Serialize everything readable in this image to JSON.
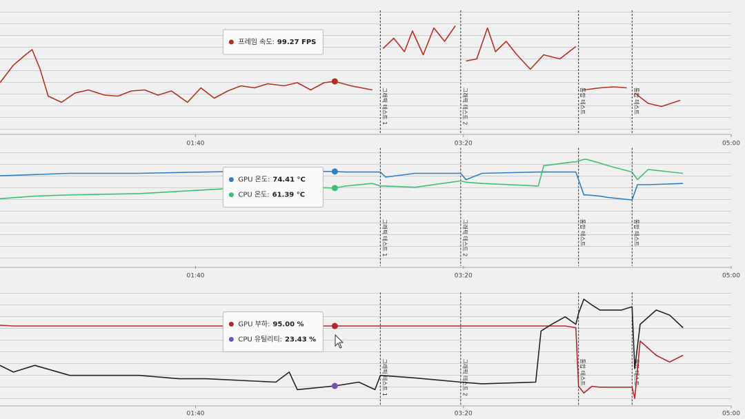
{
  "chart_data": [
    {
      "type": "line",
      "x": [
        27,
        32,
        37,
        39,
        42,
        45,
        50,
        55,
        60,
        66,
        71,
        76,
        81,
        86,
        91,
        97,
        102,
        107,
        112,
        117,
        122,
        127,
        133,
        138,
        143,
        148,
        152,
        158,
        166,
        167,
        170,
        174,
        178,
        181,
        185,
        189,
        193,
        197,
        198,
        201,
        205,
        209,
        212,
        216,
        220,
        225,
        230,
        236,
        242,
        243,
        245,
        251,
        256,
        261,
        262,
        264,
        269,
        274,
        281
      ],
      "series": [
        {
          "label": "프레임 속도:",
          "value_label": "99.27 FPS",
          "color": "#b5301f",
          "values": [
            98,
            115,
            126,
            130,
            111,
            85,
            79,
            88,
            91,
            86,
            85,
            90,
            91,
            86,
            90,
            79,
            93,
            83,
            90,
            95,
            93,
            97,
            95,
            98,
            91,
            98,
            99.27,
            95,
            91,
            null,
            131,
            141,
            128,
            148,
            125,
            151,
            138,
            153,
            null,
            119,
            121,
            151,
            128,
            138,
            125,
            111,
            125,
            121,
            133,
            null,
            91,
            93,
            94,
            93,
            null,
            88,
            78,
            75,
            81
          ]
        }
      ],
      "xlim": [
        27,
        300
      ],
      "xticks": [
        {
          "value": 100,
          "label": "01:40"
        },
        {
          "value": 200,
          "label": "03:20"
        },
        {
          "value": 300,
          "label": "05:00"
        }
      ],
      "ylim": [
        48,
        168
      ],
      "cursor_x": 152,
      "annotations": [
        {
          "x": 169,
          "text": "그래픽 테스트 1"
        },
        {
          "x": 199,
          "text": "그래픽 테스트 2"
        },
        {
          "x": 243,
          "text": "통합 테스트"
        },
        {
          "x": 263,
          "text": "통합 테스트"
        }
      ]
    },
    {
      "type": "line",
      "x": [
        27,
        40,
        53,
        79,
        104,
        130,
        152,
        156,
        166,
        169,
        171,
        182,
        199,
        201,
        207,
        228,
        230,
        241,
        242,
        245,
        246,
        251,
        254,
        263,
        265,
        269,
        282
      ],
      "series": [
        {
          "label": "GPU 온도:",
          "value_label": "74.41 °C",
          "color": "#2f7fc8",
          "values": [
            71,
            72,
            73,
            73,
            74,
            75,
            74.41,
            74,
            74,
            74,
            70,
            73,
            73,
            68,
            73,
            74,
            74,
            74,
            74,
            56,
            56,
            55,
            54,
            52,
            64,
            64,
            65
          ]
        },
        {
          "label": "CPU 온도:",
          "value_label": "61.39 °C",
          "color": "#3cc173",
          "values": [
            53,
            55,
            56,
            57,
            60,
            63,
            61.39,
            63,
            65,
            63,
            63,
            62,
            67,
            66,
            65,
            63,
            79,
            82,
            82,
            84,
            84,
            81,
            79,
            74,
            68,
            76,
            73
          ]
        }
      ],
      "xlim": [
        27,
        300
      ],
      "xticks": [
        {
          "value": 100,
          "label": "01:40"
        },
        {
          "value": 200,
          "label": "03:20"
        },
        {
          "value": 300,
          "label": "05:00"
        }
      ],
      "ylim": [
        0,
        93
      ],
      "cursor_x": 152,
      "annotations": [
        {
          "x": 169,
          "text": "그래픽 테스트 1"
        },
        {
          "x": 199,
          "text": "그래픽 테스트 2"
        },
        {
          "x": 243,
          "text": "통합 테스트"
        },
        {
          "x": 263,
          "text": "통합 테스트"
        }
      ]
    },
    {
      "type": "line",
      "x": [
        27,
        32,
        40,
        53,
        79,
        94,
        104,
        130,
        135,
        138,
        152,
        161,
        167,
        169,
        182,
        199,
        207,
        227,
        229,
        233,
        238,
        242,
        243,
        245,
        248,
        251,
        259,
        263,
        264,
        266,
        272,
        277,
        282
      ],
      "series": [
        {
          "label": "GPU 부하:",
          "value_label": "95.00 %",
          "color": "#b5262a",
          "values": [
            95.8,
            95,
            95,
            95,
            95,
            95,
            95,
            95,
            95,
            95,
            95,
            95,
            95,
            95,
            95,
            95,
            95,
            95,
            95,
            95,
            95,
            93,
            23,
            15,
            23,
            22,
            22,
            22,
            8.6,
            77,
            60,
            52,
            60
          ]
        },
        {
          "label": "CPU 유틸리티:",
          "value_label": "23.43 %",
          "color": "#222222",
          "dot_color": "#7b4fc0",
          "values": [
            48,
            40,
            48,
            36,
            36,
            32,
            32,
            28,
            40,
            19,
            23.43,
            28,
            19,
            36,
            33,
            28,
            26,
            28,
            89,
            97,
            106,
            97,
            110,
            127,
            120,
            114,
            114,
            118,
            44,
            97,
            114,
            108,
            93
          ]
        }
      ],
      "xlim": [
        27,
        300
      ],
      "xticks": [
        {
          "value": 100,
          "label": "01:40"
        },
        {
          "value": 200,
          "label": "03:20"
        },
        {
          "value": 300,
          "label": "05:00"
        }
      ],
      "ylim": [
        0,
        135
      ],
      "cursor_x": 152,
      "annotations": [
        {
          "x": 169,
          "text": "그래픽 테스트 1"
        },
        {
          "x": 199,
          "text": "그래픽 테스트 2"
        },
        {
          "x": 243,
          "text": "통합 테스트"
        },
        {
          "x": 263,
          "text": "통합 테스트"
        }
      ]
    }
  ]
}
